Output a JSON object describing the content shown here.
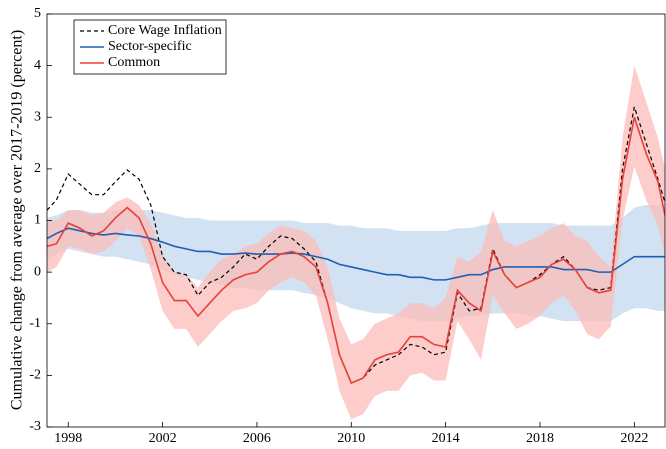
{
  "chart_data": {
    "type": "line",
    "ylabel": "Cumulative change from average over 2017-2019 (percent)",
    "x": [
      1997.1,
      1997.5,
      1998,
      1998.5,
      1999,
      1999.5,
      2000,
      2000.5,
      2001,
      2001.5,
      2002,
      2002.5,
      2003,
      2003.5,
      2004,
      2004.5,
      2005,
      2005.5,
      2006,
      2006.5,
      2007,
      2007.5,
      2008,
      2008.5,
      2009,
      2009.5,
      2010,
      2010.5,
      2011,
      2011.5,
      2012,
      2012.5,
      2013,
      2013.5,
      2014,
      2014.5,
      2015,
      2015.5,
      2016,
      2016.5,
      2017,
      2017.5,
      2018,
      2018.5,
      2019,
      2019.5,
      2020,
      2020.5,
      2021,
      2021.5,
      2022,
      2022.5,
      2023,
      2023.3
    ],
    "xlim": [
      1997.1,
      2023.3
    ],
    "xticks": [
      1998,
      2002,
      2006,
      2010,
      2014,
      2018,
      2022
    ],
    "ylim": [
      -3,
      5
    ],
    "yticks": [
      -3,
      -2,
      -1,
      0,
      1,
      2,
      3,
      4,
      5
    ],
    "grid": false,
    "legend": "upper left",
    "series": [
      {
        "name": "Core Wage Inflation",
        "color": "#000000",
        "dashed": true,
        "values": [
          1.2,
          1.4,
          1.9,
          1.7,
          1.5,
          1.5,
          1.75,
          1.98,
          1.8,
          1.3,
          0.3,
          0.0,
          -0.05,
          -0.45,
          -0.2,
          -0.1,
          0.1,
          0.35,
          0.25,
          0.5,
          0.7,
          0.65,
          0.45,
          0.2,
          -0.6,
          -1.6,
          -2.15,
          -2.05,
          -1.8,
          -1.7,
          -1.6,
          -1.4,
          -1.45,
          -1.6,
          -1.55,
          -0.4,
          -0.75,
          -0.7,
          0.45,
          -0.05,
          -0.3,
          -0.2,
          -0.05,
          0.15,
          0.3,
          0.05,
          -0.3,
          -0.35,
          -0.3,
          2.0,
          3.2,
          2.5,
          1.8,
          1.35
        ]
      },
      {
        "name": "Sector-specific",
        "color": "#1f5fb5",
        "band_color": "#c3d8ee",
        "values": [
          0.65,
          0.75,
          0.85,
          0.8,
          0.75,
          0.72,
          0.75,
          0.72,
          0.7,
          0.65,
          0.58,
          0.5,
          0.45,
          0.4,
          0.4,
          0.35,
          0.35,
          0.37,
          0.35,
          0.35,
          0.35,
          0.37,
          0.35,
          0.3,
          0.25,
          0.15,
          0.1,
          0.05,
          0.0,
          -0.05,
          -0.05,
          -0.1,
          -0.1,
          -0.15,
          -0.15,
          -0.1,
          -0.05,
          -0.05,
          0.05,
          0.1,
          0.1,
          0.1,
          0.1,
          0.1,
          0.05,
          0.05,
          0.05,
          0.0,
          0.0,
          0.15,
          0.3,
          0.3,
          0.3,
          0.3
        ],
        "upper": [
          1.05,
          1.1,
          1.2,
          1.2,
          1.15,
          1.15,
          1.2,
          1.2,
          1.2,
          1.2,
          1.15,
          1.1,
          1.05,
          1.05,
          1.0,
          1.0,
          1.0,
          1.0,
          1.0,
          1.0,
          1.0,
          1.0,
          0.95,
          0.95,
          0.95,
          0.9,
          0.9,
          0.85,
          0.85,
          0.85,
          0.8,
          0.8,
          0.8,
          0.8,
          0.8,
          0.85,
          0.85,
          0.9,
          0.95,
          0.95,
          0.95,
          0.95,
          0.95,
          0.95,
          0.9,
          0.9,
          0.9,
          0.9,
          0.9,
          1.05,
          1.25,
          1.3,
          1.3,
          1.3
        ],
        "lower": [
          0.25,
          0.35,
          0.45,
          0.4,
          0.35,
          0.3,
          0.3,
          0.25,
          0.2,
          0.15,
          0.05,
          -0.05,
          -0.1,
          -0.15,
          -0.2,
          -0.25,
          -0.3,
          -0.3,
          -0.35,
          -0.35,
          -0.35,
          -0.35,
          -0.4,
          -0.45,
          -0.5,
          -0.6,
          -0.7,
          -0.75,
          -0.8,
          -0.8,
          -0.85,
          -0.9,
          -0.95,
          -0.95,
          -0.95,
          -0.9,
          -0.85,
          -0.85,
          -0.8,
          -0.8,
          -0.8,
          -0.85,
          -0.85,
          -0.9,
          -0.95,
          -0.95,
          -0.95,
          -0.95,
          -0.95,
          -0.8,
          -0.7,
          -0.7,
          -0.75,
          -0.75
        ]
      },
      {
        "name": "Common",
        "color": "#e8413a",
        "band_color": "#fbbcb8",
        "values": [
          0.5,
          0.55,
          0.95,
          0.85,
          0.7,
          0.8,
          1.05,
          1.25,
          1.05,
          0.55,
          -0.2,
          -0.55,
          -0.55,
          -0.85,
          -0.6,
          -0.35,
          -0.15,
          -0.05,
          0.0,
          0.2,
          0.35,
          0.4,
          0.3,
          0.1,
          -0.6,
          -1.6,
          -2.15,
          -2.05,
          -1.7,
          -1.6,
          -1.55,
          -1.25,
          -1.25,
          -1.4,
          -1.45,
          -0.35,
          -0.6,
          -0.75,
          0.4,
          -0.05,
          -0.3,
          -0.2,
          -0.1,
          0.15,
          0.25,
          0.05,
          -0.3,
          -0.4,
          -0.35,
          1.8,
          3.0,
          2.3,
          1.75,
          1.1
        ],
        "upper": [
          1.0,
          1.0,
          1.2,
          1.2,
          1.1,
          1.15,
          1.35,
          1.45,
          1.3,
          0.95,
          0.35,
          0.0,
          -0.05,
          -0.3,
          0.0,
          0.25,
          0.35,
          0.5,
          0.55,
          0.75,
          0.9,
          0.85,
          0.8,
          0.6,
          0.1,
          -0.9,
          -1.4,
          -1.3,
          -1.0,
          -0.9,
          -0.8,
          -0.6,
          -0.6,
          -0.7,
          -0.5,
          0.3,
          0.2,
          0.4,
          1.2,
          0.6,
          0.5,
          0.6,
          0.7,
          0.85,
          0.95,
          0.7,
          0.6,
          0.3,
          0.1,
          2.6,
          4.0,
          3.3,
          2.6,
          2.0
        ],
        "lower": [
          0.0,
          0.1,
          0.5,
          0.45,
          0.35,
          0.4,
          0.6,
          0.85,
          0.7,
          0.05,
          -0.75,
          -1.1,
          -1.1,
          -1.45,
          -1.2,
          -0.95,
          -0.75,
          -0.7,
          -0.6,
          -0.35,
          -0.2,
          -0.1,
          -0.2,
          -0.45,
          -1.3,
          -2.3,
          -2.85,
          -2.75,
          -2.4,
          -2.3,
          -2.3,
          -2.0,
          -1.95,
          -2.1,
          -2.1,
          -0.95,
          -1.3,
          -1.7,
          -0.45,
          -0.8,
          -1.1,
          -1.0,
          -0.85,
          -0.6,
          -0.45,
          -0.75,
          -1.2,
          -1.3,
          -1.05,
          1.0,
          2.05,
          1.4,
          0.9,
          0.3
        ]
      }
    ]
  }
}
